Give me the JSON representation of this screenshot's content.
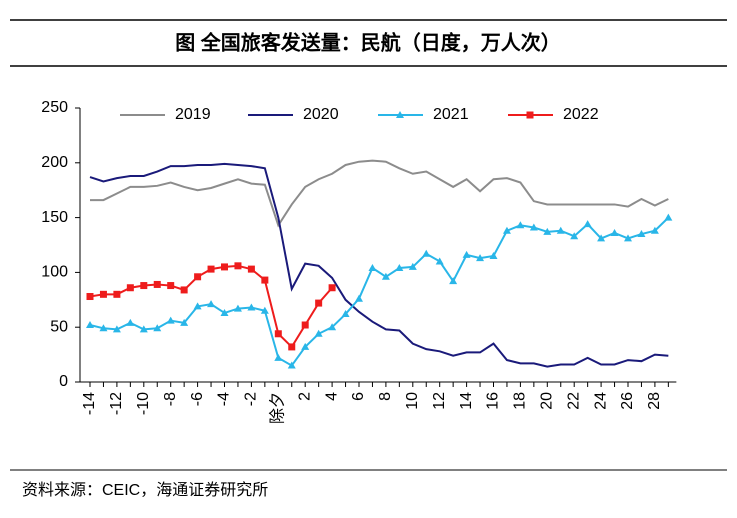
{
  "chart_data": {
    "type": "line",
    "title": "图  全国旅客发送量：民航（日度，万人次）",
    "source": "资料来源：CEIC，海通证券研究所",
    "categories": [
      "-14",
      null,
      "-12",
      null,
      "-10",
      null,
      "-8",
      null,
      "-6",
      null,
      "-4",
      null,
      "-2",
      null,
      "除夕",
      null,
      "2",
      null,
      "4",
      null,
      "6",
      null,
      "8",
      null,
      "10",
      null,
      "12",
      null,
      "14",
      null,
      "16",
      null,
      "18",
      null,
      "20",
      null,
      "22",
      null,
      "24",
      null,
      "26",
      null,
      "28",
      null
    ],
    "ylim": [
      0,
      250
    ],
    "yticks": [
      0,
      50,
      100,
      150,
      200,
      250
    ],
    "grid": false,
    "legend": "top",
    "series": [
      {
        "name": "2019",
        "color": "#8c8c8c",
        "marker": null,
        "values": [
          166,
          166,
          172,
          178,
          178,
          179,
          182,
          178,
          175,
          177,
          181,
          185,
          181,
          180,
          143,
          162,
          178,
          185,
          190,
          198,
          201,
          202,
          201,
          195,
          190,
          192,
          185,
          178,
          185,
          174,
          185,
          186,
          182,
          165,
          162,
          162,
          162,
          162,
          162,
          162,
          160,
          167,
          161,
          167
        ]
      },
      {
        "name": "2020",
        "color": "#1a1a7a",
        "marker": null,
        "values": [
          187,
          183,
          186,
          188,
          188,
          192,
          197,
          197,
          198,
          198,
          199,
          198,
          197,
          195,
          150,
          85,
          108,
          106,
          95,
          75,
          64,
          55,
          48,
          47,
          35,
          30,
          28,
          24,
          27,
          27,
          35,
          20,
          17,
          17,
          14,
          16,
          16,
          22,
          16,
          16,
          20,
          19,
          25,
          24
        ]
      },
      {
        "name": "2021",
        "color": "#29b6e8",
        "marker": "triangle",
        "values": [
          52,
          49,
          48,
          54,
          48,
          49,
          56,
          54,
          69,
          71,
          63,
          67,
          68,
          65,
          22,
          15,
          32,
          44,
          50,
          62,
          76,
          104,
          96,
          104,
          105,
          117,
          110,
          92,
          116,
          113,
          115,
          138,
          143,
          141,
          137,
          138,
          133,
          144,
          131,
          136,
          131,
          135,
          138,
          150
        ]
      },
      {
        "name": "2022",
        "color": "#ee1c1c",
        "marker": "square",
        "values": [
          78,
          80,
          80,
          86,
          88,
          89,
          88,
          84,
          96,
          103,
          105,
          106,
          103,
          93,
          44,
          32,
          52,
          72,
          86,
          null,
          null,
          null,
          null,
          null,
          null,
          null,
          null,
          null,
          null,
          null,
          null,
          null,
          null,
          null,
          null,
          null,
          null,
          null,
          null,
          null,
          null,
          null,
          null,
          null
        ]
      }
    ]
  }
}
